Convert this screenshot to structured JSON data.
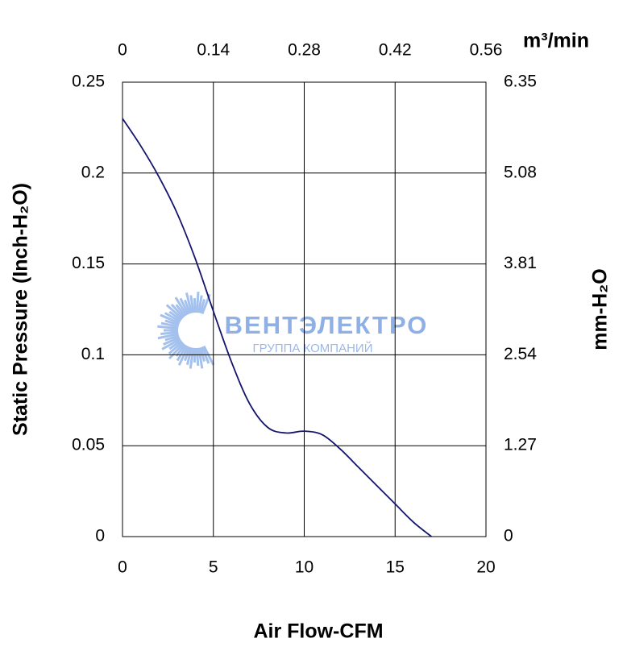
{
  "chart_data": {
    "type": "line",
    "x_label": "Air Flow-CFM",
    "y_label": "Static Pressure (Inch-H₂O)",
    "y2_label": "mm-H₂O",
    "x2_label": "m³/min",
    "watermark": {
      "brand": "ВЕНТЭЛЕКТРО",
      "tagline": "ГРУППА КОМПАНИЙ"
    },
    "x": [
      0,
      1,
      2,
      3,
      4,
      5,
      6,
      7,
      8,
      9,
      10,
      11,
      12,
      13,
      14,
      15,
      16,
      17
    ],
    "series": [
      {
        "color": "#14146e",
        "values": [
          0.23,
          0.215,
          0.198,
          0.178,
          0.153,
          0.124,
          0.096,
          0.073,
          0.06,
          0.057,
          0.058,
          0.056,
          0.048,
          0.038,
          0.028,
          0.018,
          0.008,
          0
        ]
      }
    ],
    "xlim": [
      0,
      20
    ],
    "xticks": [
      0,
      5,
      10,
      15,
      20
    ],
    "x2lim": [
      0,
      0.56
    ],
    "x2ticks": [
      0,
      0.14,
      0.28,
      0.42,
      0.56
    ],
    "ylim": [
      0,
      0.25
    ],
    "yticks": [
      0,
      0.05,
      0.1,
      0.15,
      0.2,
      0.25
    ],
    "y2lim": [
      0,
      6.35
    ],
    "y2ticks": [
      0,
      1.27,
      2.54,
      3.81,
      5.08,
      6.35
    ],
    "grid": true
  }
}
